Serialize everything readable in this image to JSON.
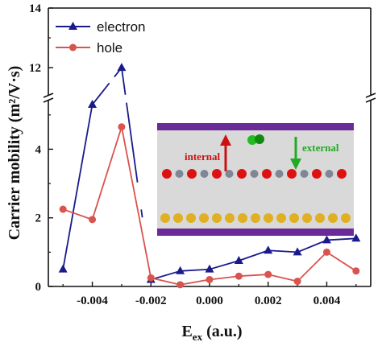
{
  "chart_data": {
    "type": "line",
    "xlabel_main": "E",
    "xlabel_sub": "ex",
    "xlabel_rest": " (a.u.)",
    "ylabel": "Carrier mobility (m²/V·s)",
    "x_ticks": [
      -0.004,
      -0.002,
      0.0,
      0.002,
      0.004
    ],
    "x_tick_labels": [
      "-0.004",
      "-0.002",
      "0.000",
      "0.002",
      "0.004"
    ],
    "xlim": [
      -0.0055,
      0.0055
    ],
    "y_lower": {
      "range": [
        0,
        5.3
      ],
      "ticks": [
        0,
        2,
        4
      ],
      "tick_labels": [
        "0",
        "2",
        "4"
      ]
    },
    "y_upper": {
      "range": [
        11.3,
        14
      ],
      "ticks": [
        12,
        14
      ],
      "tick_labels": [
        "12",
        "14"
      ]
    },
    "axis_break": true,
    "legend_position": "top-left",
    "series": [
      {
        "name": "electron",
        "color": "#1a1a8c",
        "marker": "triangle",
        "x": [
          -0.005,
          -0.004,
          -0.003,
          -0.002,
          -0.001,
          0.0,
          0.001,
          0.002,
          0.003,
          0.004,
          0.005
        ],
        "y": [
          0.5,
          5.3,
          12.0,
          0.2,
          0.45,
          0.5,
          0.75,
          1.05,
          1.0,
          1.35,
          1.4
        ]
      },
      {
        "name": "hole",
        "color": "#d9534f",
        "marker": "circle",
        "x": [
          -0.005,
          -0.004,
          -0.003,
          -0.002,
          -0.001,
          0.0,
          0.001,
          0.002,
          0.003,
          0.004,
          0.005
        ],
        "y": [
          2.25,
          1.95,
          4.65,
          0.25,
          0.05,
          0.2,
          0.3,
          0.35,
          0.15,
          1.0,
          0.45
        ]
      }
    ],
    "inset": {
      "label_internal": "internal",
      "label_external": "external",
      "internal_color": "#cc1111",
      "external_color": "#22aa22"
    }
  }
}
